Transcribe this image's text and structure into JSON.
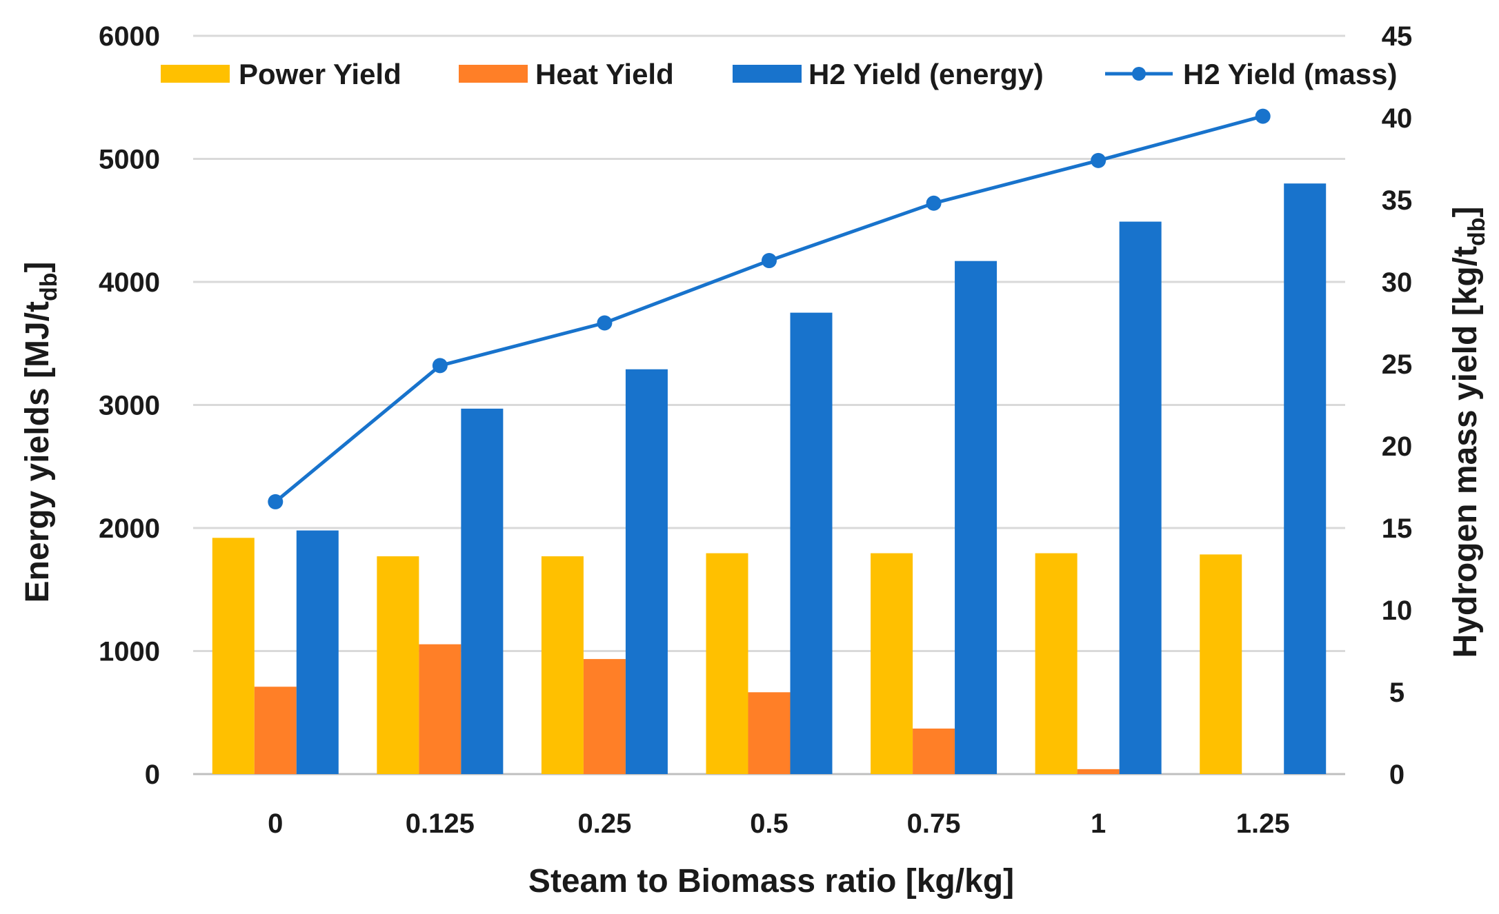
{
  "chart_data": {
    "type": "bar",
    "title": "",
    "categories": [
      "0",
      "0.125",
      "0.25",
      "0.5",
      "0.75",
      "1",
      "1.25"
    ],
    "xlabel": "Steam to Biomass ratio [kg/kg]",
    "ylabel": {
      "main": "Energy yields [MJ/t",
      "sub": "db",
      "end": "]"
    },
    "y2label": {
      "main": "Hydrogen mass yield [kg/t",
      "sub": "db",
      "end": "]"
    },
    "ylim": [
      0,
      6000
    ],
    "yticks": [
      "0",
      "1000",
      "2000",
      "3000",
      "4000",
      "5000",
      "6000"
    ],
    "y2lim": [
      0,
      45
    ],
    "y2ticks": [
      "0",
      "5",
      "10",
      "15",
      "20",
      "25",
      "30",
      "35",
      "40",
      "45"
    ],
    "grid": true,
    "legend_position": "top",
    "series": [
      {
        "name": "Power Yield",
        "kind": "bar",
        "axis": "left",
        "color": "#FFC000",
        "values": [
          1920,
          1770,
          1770,
          1795,
          1795,
          1795,
          1785
        ]
      },
      {
        "name": "Heat Yield",
        "kind": "bar",
        "axis": "left",
        "color": "#FF7F27",
        "values": [
          710,
          1055,
          935,
          665,
          370,
          40,
          0
        ]
      },
      {
        "name": "H2 Yield (energy)",
        "kind": "bar",
        "axis": "left",
        "color": "#1873CC",
        "values": [
          1980,
          2970,
          3290,
          3750,
          4170,
          4490,
          4800
        ]
      },
      {
        "name": "H2 Yield (mass)",
        "kind": "line",
        "axis": "right",
        "color": "#1873CC",
        "values": [
          16.6,
          24.9,
          27.5,
          31.3,
          34.8,
          37.4,
          40.1
        ]
      }
    ]
  }
}
